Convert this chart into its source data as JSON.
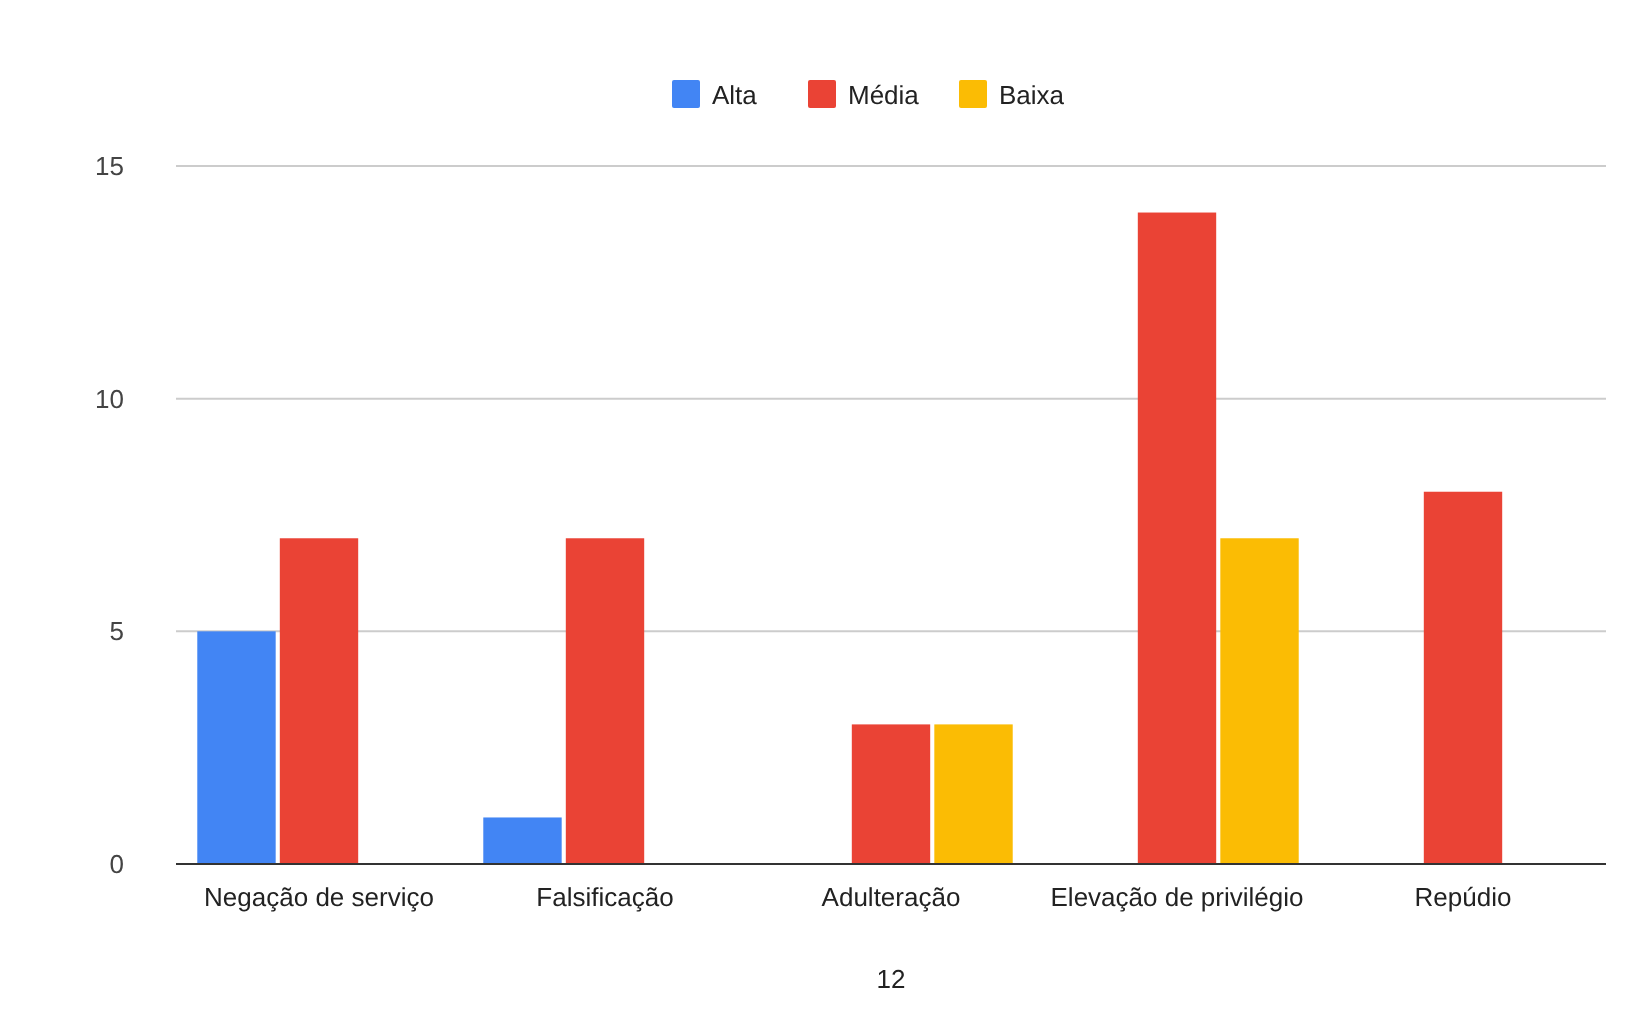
{
  "chart_data": {
    "type": "bar",
    "xlabel": "12",
    "categories": [
      "Negação de serviço",
      "Falsificação",
      "Adulteração",
      "Elevação de privilégio",
      "Repúdio"
    ],
    "series": [
      {
        "name": "Alta",
        "color": "#4285f4",
        "values": [
          5,
          1,
          null,
          null,
          null
        ]
      },
      {
        "name": "Média",
        "color": "#ea4335",
        "values": [
          7,
          7,
          3,
          14,
          8
        ]
      },
      {
        "name": "Baixa",
        "color": "#fbbc04",
        "values": [
          null,
          null,
          3,
          7,
          null
        ]
      }
    ],
    "ylim": [
      0,
      15
    ],
    "yticks": [
      0,
      5,
      10,
      15
    ],
    "grid": "y",
    "legend": "top"
  }
}
